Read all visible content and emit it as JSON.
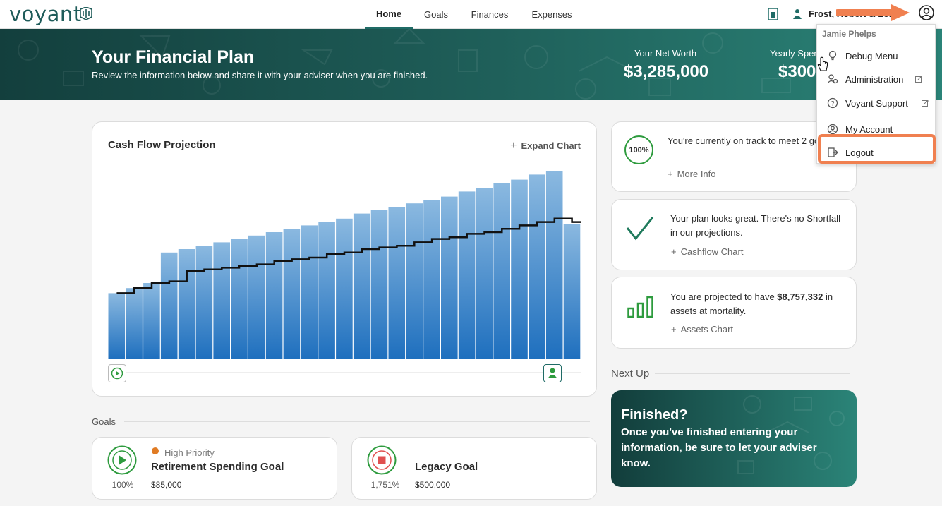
{
  "app": {
    "logo_text": "voyant"
  },
  "nav": {
    "items": [
      "Home",
      "Goals",
      "Finances",
      "Expenses"
    ],
    "active": "Home"
  },
  "header": {
    "household": "Frost, Robert & Les"
  },
  "hero": {
    "title": "Your Financial Plan",
    "subtitle": "Review the information below and share it with your adviser when you are finished.",
    "net_worth_label": "Your Net Worth",
    "net_worth_value": "$3,285,000",
    "spend_label": "Yearly Spen",
    "spend_value": "$300"
  },
  "cashflow": {
    "title": "Cash Flow Projection",
    "expand_label": "Expand Chart"
  },
  "chart_data": {
    "type": "bar",
    "title": "Cash Flow Projection",
    "series": [
      {
        "values": [
          39,
          42,
          45,
          63,
          65,
          67,
          69,
          71,
          73,
          75,
          77,
          79,
          81,
          83,
          86,
          88,
          90,
          92,
          94,
          96,
          99,
          101,
          104,
          106,
          109,
          111,
          80
        ]
      },
      {
        "values": [
          39,
          42,
          45,
          46,
          52,
          53,
          54,
          55,
          56,
          58,
          59,
          60,
          62,
          63,
          65,
          66,
          67,
          69,
          71,
          72,
          74,
          75,
          77,
          79,
          81,
          83,
          81
        ]
      }
    ],
    "ylim": [
      0,
      115
    ],
    "grid": false,
    "legend": "none"
  },
  "info_cards": [
    {
      "badge": "100%",
      "text": "You're currently on track to meet 2 goals.",
      "link": "More Info"
    },
    {
      "text": "Your plan looks great. There's no Shortfall in our projections.",
      "link": "Cashflow Chart"
    },
    {
      "text_prefix": "You are projected to have ",
      "amount": "$8,757,332",
      "text_suffix": " in assets at mortality.",
      "link": "Assets Chart"
    }
  ],
  "next_up": {
    "label": "Next Up",
    "title": "Finished?",
    "body": "Once you've finished entering your information, be sure to let your adviser know."
  },
  "goals": {
    "label": "Goals",
    "items": [
      {
        "priority": "High Priority",
        "name": "Retirement Spending Goal",
        "amount": "$85,000",
        "percent": "100%"
      },
      {
        "name": "Legacy Goal",
        "amount": "$500,000",
        "percent": "1,751%"
      }
    ]
  },
  "user_menu": {
    "user": "Jamie Phelps",
    "items": [
      "Debug Menu",
      "Administration",
      "Voyant Support",
      "My Account",
      "Logout"
    ]
  },
  "colors": {
    "brand": "#1f6b66",
    "bar_top": "#8bb9e0",
    "bar_bottom": "#1e6fbe",
    "accent_green": "#2e9b3e",
    "highlight": "#f08050",
    "priority": "#e07b24"
  }
}
